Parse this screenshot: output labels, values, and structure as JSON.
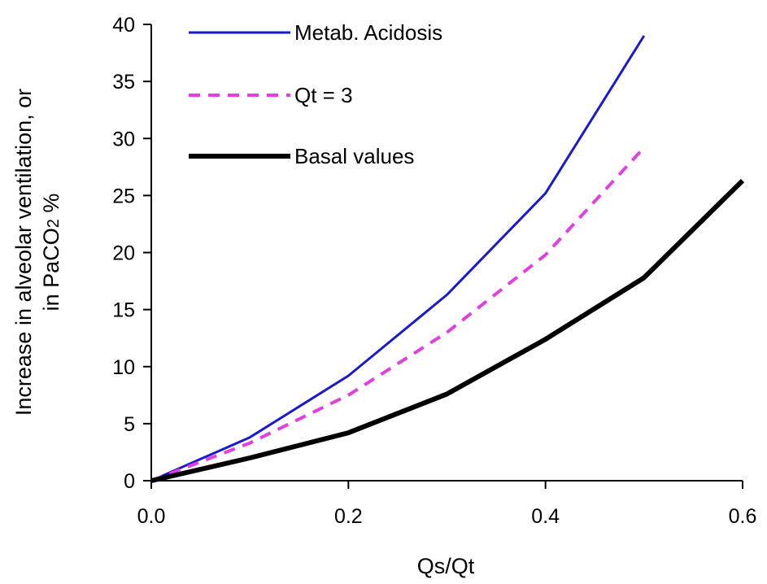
{
  "chart_data": {
    "type": "line",
    "xlabel": "Qs/Qt",
    "ylabel_lines": [
      "Increase in alveolar ventilation, or",
      "in PaCO",
      "2",
      " %"
    ],
    "xlim": [
      0,
      0.6
    ],
    "ylim": [
      0,
      40
    ],
    "x_ticks": [
      "0.0",
      "0.2",
      "0.4",
      "0.6"
    ],
    "y_ticks": [
      "0",
      "5",
      "10",
      "15",
      "20",
      "25",
      "30",
      "35",
      "40"
    ],
    "grid": false,
    "legend_position": "top-left",
    "series": [
      {
        "name": "Metab. Acidosis",
        "color": "#1a1acc",
        "style": "solid",
        "x": [
          0,
          0.1,
          0.2,
          0.3,
          0.4,
          0.5
        ],
        "y": [
          0,
          3.8,
          9.2,
          16.3,
          25.2,
          39.0
        ]
      },
      {
        "name": "Qt = 3",
        "color": "#e040e0",
        "style": "dashed",
        "x": [
          0,
          0.1,
          0.2,
          0.3,
          0.4,
          0.5
        ],
        "y": [
          0,
          3.3,
          7.5,
          13.0,
          19.8,
          29.2
        ]
      },
      {
        "name": "Basal values",
        "color": "#000000",
        "style": "thick",
        "x": [
          0,
          0.1,
          0.2,
          0.3,
          0.4,
          0.5,
          0.6
        ],
        "y": [
          0,
          2.0,
          4.2,
          7.6,
          12.4,
          17.8,
          26.3
        ]
      }
    ]
  }
}
